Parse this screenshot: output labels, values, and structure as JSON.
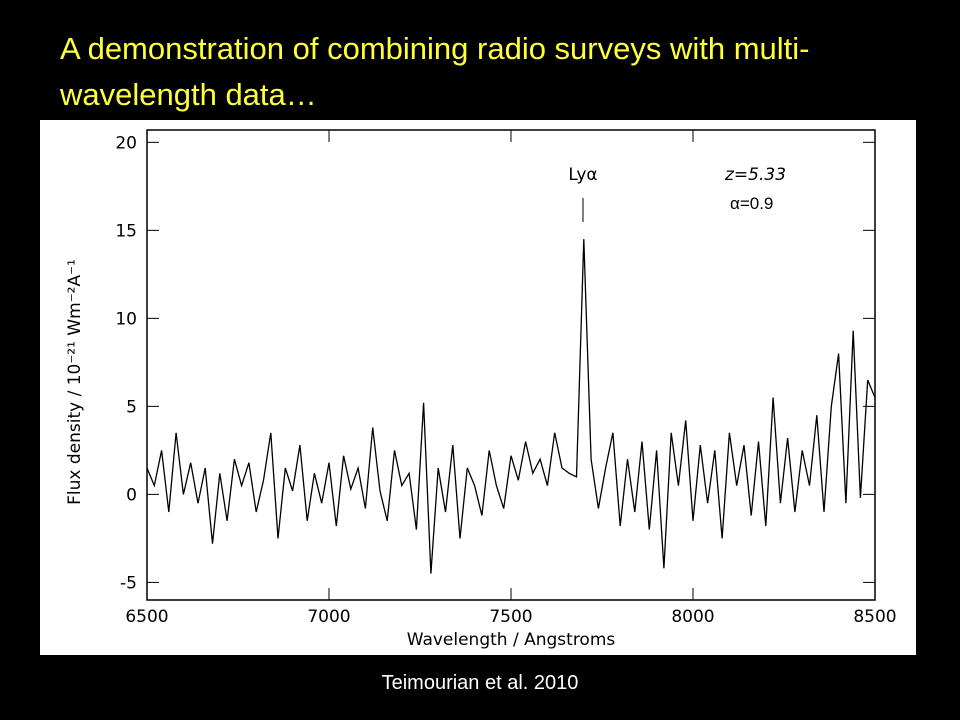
{
  "chart_data": {
    "type": "line",
    "title": "A demonstration of combining radio surveys with multi-wavelength data…",
    "xlabel": "Wavelength / Angstroms",
    "ylabel": "Flux density / 10⁻²¹ Wm⁻²A⁻¹",
    "annotations": [
      "Lyα",
      "z=5.33",
      "α=0.9"
    ],
    "source": "Teimourian et al. 2010",
    "color": "#000000",
    "xlim": [
      6500,
      8500
    ],
    "xticks": [
      6500,
      7000,
      7500,
      8000,
      8500
    ],
    "ylim": [
      -6,
      20.7
    ],
    "yticks": [
      -5,
      0,
      5,
      10,
      15,
      20
    ],
    "x": [
      6500,
      6520,
      6540,
      6560,
      6580,
      6600,
      6620,
      6640,
      6660,
      6680,
      6700,
      6720,
      6740,
      6760,
      6780,
      6800,
      6820,
      6840,
      6860,
      6880,
      6900,
      6920,
      6940,
      6960,
      6980,
      7000,
      7020,
      7040,
      7060,
      7080,
      7100,
      7120,
      7140,
      7160,
      7180,
      7200,
      7220,
      7240,
      7260,
      7280,
      7300,
      7320,
      7340,
      7360,
      7380,
      7400,
      7420,
      7440,
      7460,
      7480,
      7500,
      7520,
      7540,
      7560,
      7580,
      7600,
      7620,
      7640,
      7660,
      7680,
      7700,
      7720,
      7740,
      7760,
      7780,
      7800,
      7820,
      7840,
      7860,
      7880,
      7900,
      7920,
      7940,
      7960,
      7980,
      8000,
      8020,
      8040,
      8060,
      8080,
      8100,
      8120,
      8140,
      8160,
      8180,
      8200,
      8220,
      8240,
      8260,
      8280,
      8300,
      8320,
      8340,
      8360,
      8380,
      8400,
      8420,
      8440,
      8460,
      8480,
      8500
    ],
    "values": [
      1.5,
      0.5,
      2.5,
      -1,
      3.5,
      0,
      1.8,
      -0.5,
      1.5,
      -2.8,
      1.2,
      -1.5,
      2,
      0.5,
      1.8,
      -1,
      0.8,
      3.5,
      -2.5,
      1.5,
      0.2,
      2.8,
      -1.5,
      1.2,
      -0.5,
      1.8,
      -1.8,
      2.2,
      0.3,
      1.5,
      -0.8,
      3.8,
      0.2,
      -1.5,
      2.5,
      0.5,
      1.2,
      -2,
      5.2,
      -4.5,
      1.5,
      -1,
      2.8,
      -2.5,
      1.5,
      0.5,
      -1.2,
      2.5,
      0.5,
      -0.8,
      2.2,
      0.8,
      3,
      1.2,
      2,
      0.5,
      3.5,
      1.5,
      1.2,
      1,
      14.5,
      2,
      -0.8,
      1.5,
      3.5,
      -1.8,
      2,
      -1,
      3,
      -2,
      2.5,
      -4.2,
      3.5,
      0.5,
      4.2,
      -1.5,
      2.8,
      -0.5,
      2.5,
      -2.5,
      3.5,
      0.5,
      2.8,
      -1.2,
      3,
      -1.8,
      5.5,
      -0.5,
      3.2,
      -1,
      2.5,
      0.5,
      4.5,
      -1,
      5,
      8,
      -0.5,
      9.3,
      -0.2,
      6.5,
      5.5
    ]
  }
}
